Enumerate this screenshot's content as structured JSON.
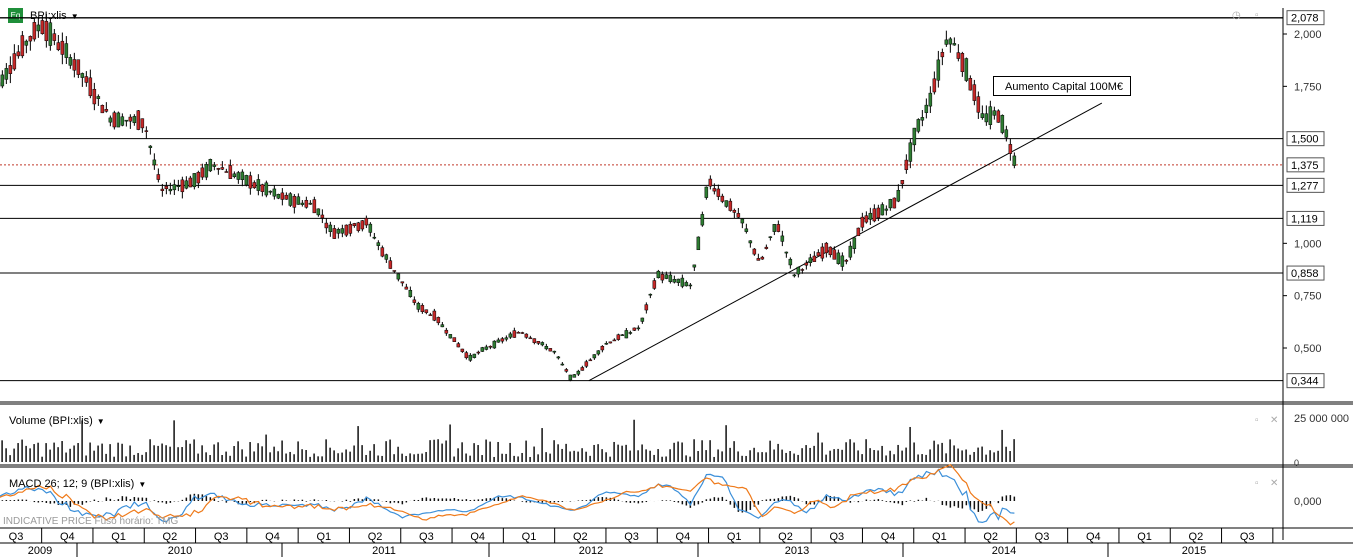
{
  "header": {
    "ticker_icon": "Eq",
    "ticker": "BPI:xlis"
  },
  "annotation_text": "Aumento Capital 100M€",
  "price_axis_labels": [
    "2,000",
    "1,750",
    "1,000",
    "0,750",
    "0,500"
  ],
  "price_levels": [
    {
      "label": "2,078",
      "value": 2.078
    },
    {
      "label": "1,500",
      "value": 1.5
    },
    {
      "label": "1,375",
      "value": 1.375
    },
    {
      "label": "1,277",
      "value": 1.277
    },
    {
      "label": "1,119",
      "value": 1.119
    },
    {
      "label": "0,858",
      "value": 0.858
    },
    {
      "label": "0,344",
      "value": 0.344
    }
  ],
  "volume_panel": {
    "title": "Volume (BPI:xlis)",
    "axis_labels": [
      "25 000 000",
      "0"
    ]
  },
  "macd_panel": {
    "title": "MACD 26; 12; 9 (BPI:xlis)",
    "axis_labels": [
      "0,000"
    ]
  },
  "footer_note": "INDICATIVE PRICE   Fuso horário: TMG",
  "quarter_labels": [
    "Q3",
    "Q4",
    "Q1",
    "Q2",
    "Q3",
    "Q4",
    "Q1",
    "Q2",
    "Q3",
    "Q4",
    "Q1",
    "Q2",
    "Q3",
    "Q4",
    "Q1",
    "Q2",
    "Q3",
    "Q4",
    "Q1",
    "Q2",
    "Q3",
    "Q4",
    "Q1",
    "Q2",
    "Q3"
  ],
  "year_labels": [
    "2009",
    "2010",
    "2011",
    "2012",
    "2013",
    "2014",
    "2015"
  ],
  "colors": {
    "up": "#2e7d32",
    "down": "#c62828",
    "macd": "#3b8fd9",
    "signal": "#ef7a1a",
    "dashed_level": "#c0392b"
  },
  "chart_data": {
    "type": "candlestick",
    "title": "BPI:xlis",
    "x_unit": "quarter",
    "x_range": [
      "2009-Q3",
      "2015-Q3"
    ],
    "y_range": [
      0.3,
      2.1
    ],
    "weekly_close_approx": [
      {
        "date": "2009-07",
        "value": 1.7
      },
      {
        "date": "2009-09",
        "value": 1.95
      },
      {
        "date": "2009-10",
        "value": 2.05
      },
      {
        "date": "2009-12",
        "value": 1.85
      },
      {
        "date": "2010-02",
        "value": 1.6
      },
      {
        "date": "2010-04",
        "value": 1.58
      },
      {
        "date": "2010-05",
        "value": 1.25
      },
      {
        "date": "2010-07",
        "value": 1.3
      },
      {
        "date": "2010-08",
        "value": 1.38
      },
      {
        "date": "2010-10",
        "value": 1.3
      },
      {
        "date": "2010-12",
        "value": 1.22
      },
      {
        "date": "2011-02",
        "value": 1.18
      },
      {
        "date": "2011-03",
        "value": 1.05
      },
      {
        "date": "2011-05",
        "value": 1.1
      },
      {
        "date": "2011-06",
        "value": 0.95
      },
      {
        "date": "2011-08",
        "value": 0.7
      },
      {
        "date": "2011-09",
        "value": 0.65
      },
      {
        "date": "2011-11",
        "value": 0.45
      },
      {
        "date": "2011-12",
        "value": 0.5
      },
      {
        "date": "2012-02",
        "value": 0.58
      },
      {
        "date": "2012-04",
        "value": 0.48
      },
      {
        "date": "2012-05",
        "value": 0.35
      },
      {
        "date": "2012-07",
        "value": 0.52
      },
      {
        "date": "2012-09",
        "value": 0.6
      },
      {
        "date": "2012-10",
        "value": 0.85
      },
      {
        "date": "2012-12",
        "value": 0.8
      },
      {
        "date": "2013-01",
        "value": 1.3
      },
      {
        "date": "2013-03",
        "value": 1.1
      },
      {
        "date": "2013-04",
        "value": 0.9
      },
      {
        "date": "2013-05",
        "value": 1.1
      },
      {
        "date": "2013-06",
        "value": 0.85
      },
      {
        "date": "2013-08",
        "value": 0.98
      },
      {
        "date": "2013-09",
        "value": 0.9
      },
      {
        "date": "2013-10",
        "value": 1.1
      },
      {
        "date": "2013-12",
        "value": 1.2
      },
      {
        "date": "2014-01",
        "value": 1.5
      },
      {
        "date": "2014-02",
        "value": 1.7
      },
      {
        "date": "2014-03",
        "value": 2.0
      },
      {
        "date": "2014-04",
        "value": 1.85
      },
      {
        "date": "2014-05",
        "value": 1.6
      },
      {
        "date": "2014-06",
        "value": 1.62
      },
      {
        "date": "2014-07",
        "value": 1.375
      }
    ],
    "trendline": {
      "from": {
        "date": "2012-06",
        "value": 0.344
      },
      "to": {
        "date": "2014-12",
        "value": 1.67
      }
    },
    "horizontal_levels": [
      2.078,
      1.5,
      1.375,
      1.277,
      1.119,
      0.858,
      0.344
    ],
    "ylabel": "",
    "xlabel": ""
  }
}
